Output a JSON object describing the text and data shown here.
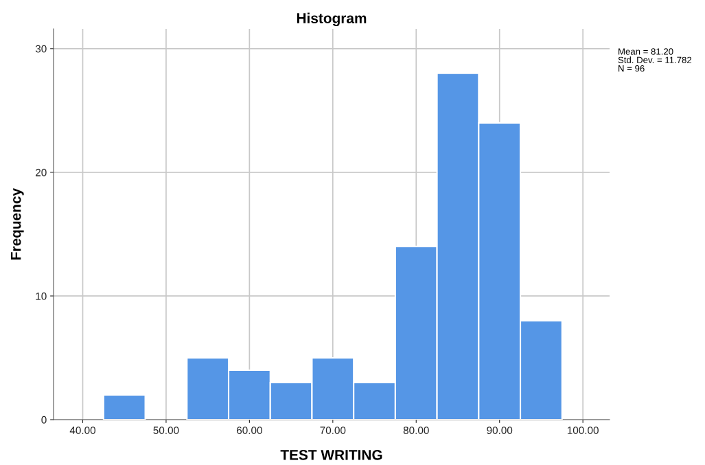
{
  "chart_data": {
    "type": "histogram",
    "title": "Histogram",
    "xlabel": "TEST WRITING",
    "ylabel": "Frequency",
    "bins": [
      42.5,
      47.5,
      52.5,
      57.5,
      62.5,
      67.5,
      72.5,
      77.5,
      82.5,
      87.5,
      92.5,
      97.5
    ],
    "values": [
      2,
      0,
      5,
      4,
      3,
      5,
      3,
      14,
      28,
      24,
      8
    ],
    "color": "#5596e6",
    "xlim": [
      36.5,
      103.2
    ],
    "ylim": [
      0,
      31.6
    ],
    "xticks": [
      {
        "value": 40,
        "label": "40.00"
      },
      {
        "value": 50,
        "label": "50.00"
      },
      {
        "value": 60,
        "label": "60.00"
      },
      {
        "value": 70,
        "label": "70.00"
      },
      {
        "value": 80,
        "label": "80.00"
      },
      {
        "value": 90,
        "label": "90.00"
      },
      {
        "value": 100,
        "label": "100.00"
      }
    ],
    "yticks": [
      0,
      10,
      20,
      30
    ],
    "grid": true,
    "annotations": [
      "Mean = 81.20\nStd. Dev. = 11.782\nN = 96"
    ]
  }
}
